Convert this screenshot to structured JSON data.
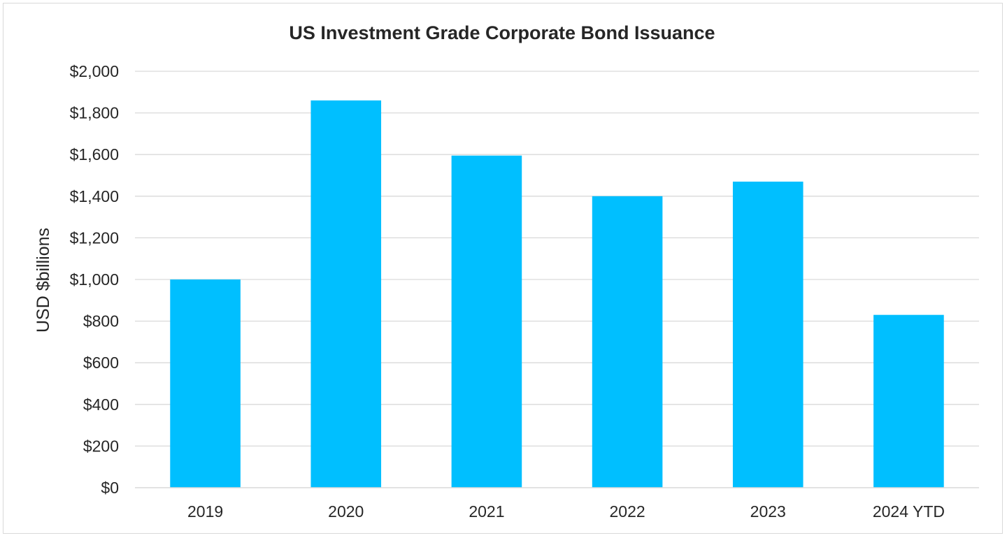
{
  "chart_data": {
    "type": "bar",
    "title": "US Investment Grade Corporate Bond Issuance",
    "xlabel": "",
    "ylabel": "USD $billions",
    "categories": [
      "2019",
      "2020",
      "2021",
      "2022",
      "2023",
      "2024 YTD"
    ],
    "values": [
      1000,
      1860,
      1595,
      1400,
      1470,
      830
    ],
    "ylim": [
      0,
      2000
    ],
    "yticks": [
      0,
      200,
      400,
      600,
      800,
      1000,
      1200,
      1400,
      1600,
      1800,
      2000
    ],
    "ytick_labels": [
      "$0",
      "$200",
      "$400",
      "$600",
      "$800",
      "$1,000",
      "$1,200",
      "$1,400",
      "$1,600",
      "$1,800",
      "$2,000"
    ],
    "grid": true,
    "legend": "none",
    "bar_color": "#00BFFF",
    "gridline_color": "#D9D9D9"
  }
}
